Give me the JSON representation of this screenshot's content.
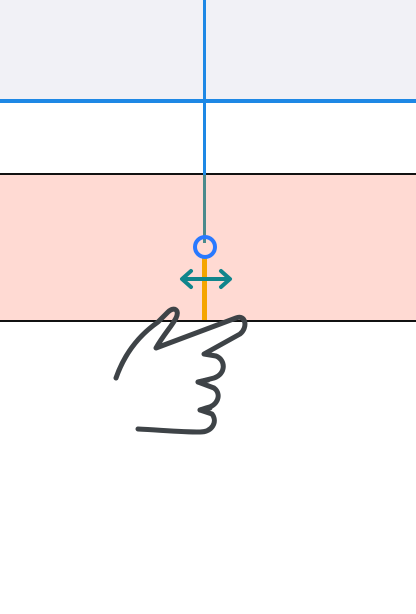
{
  "tutorial": {
    "header_region": {
      "fill": "#f1f1f6",
      "rule_color": "#1e88e5"
    },
    "highlight_band": {
      "fill": "#ffdad3",
      "border_color": "#111111"
    },
    "cursor_line": {
      "color": "#1e88e5",
      "lower_color": "#4a8a8c"
    },
    "drag_segment": {
      "color": "#f5a500"
    },
    "drag_handle": {
      "icon": "circle-handle-icon",
      "color": "#2979ff"
    },
    "resize_indicator": {
      "icon": "horizontal-resize-arrow-icon",
      "color": "#10858c"
    },
    "gesture": {
      "icon": "pointing-hand-icon",
      "stroke": "#3e4347"
    }
  }
}
